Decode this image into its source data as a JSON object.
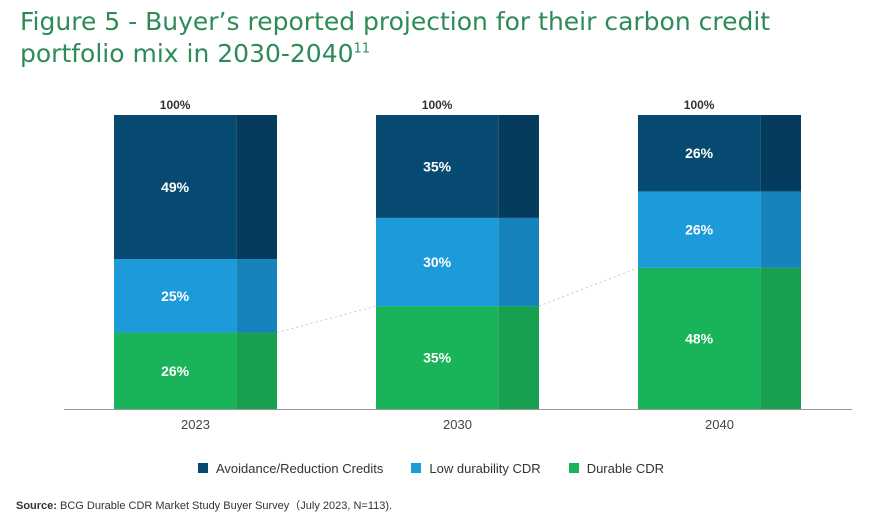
{
  "title": {
    "text": "Figure 5 - Buyer’s reported projection for their carbon credit portfolio mix in 2030-2040",
    "footnote": "11"
  },
  "source": {
    "label": "Source:",
    "text": " BCG Durable CDR Market Study Buyer Survey（July 2023, N=113)."
  },
  "colors": {
    "avoidance": "#064a72",
    "avoidance_dark": "#053b5c",
    "low": "#1c9ad9",
    "low_dark": "#1683bd",
    "durable": "#19b35a",
    "durable_dark": "#16a04f",
    "total_label": "#333333",
    "segment_label": "#ffffff",
    "axis": "#999999"
  },
  "chart_data": {
    "type": "bar",
    "stacked": true,
    "categories": [
      "2023",
      "2030",
      "2040"
    ],
    "series": [
      {
        "name": "Durable CDR",
        "key": "durable",
        "values": [
          26,
          35,
          48
        ],
        "labels": [
          "26%",
          "35%",
          "48%"
        ]
      },
      {
        "name": "Low durability CDR",
        "key": "low",
        "values": [
          25,
          30,
          26
        ],
        "labels": [
          "25%",
          "30%",
          "26%"
        ]
      },
      {
        "name": "Avoidance/Reduction Credits",
        "key": "avoidance",
        "values": [
          49,
          35,
          26
        ],
        "labels": [
          "49%",
          "35%",
          "26%"
        ]
      }
    ],
    "totals": [
      "100%",
      "100%",
      "100%"
    ],
    "ylim": [
      0,
      100
    ],
    "legend": [
      "Avoidance/Reduction Credits",
      "Low durability CDR",
      "Durable CDR"
    ],
    "legend_position": "bottom",
    "grid": false
  }
}
